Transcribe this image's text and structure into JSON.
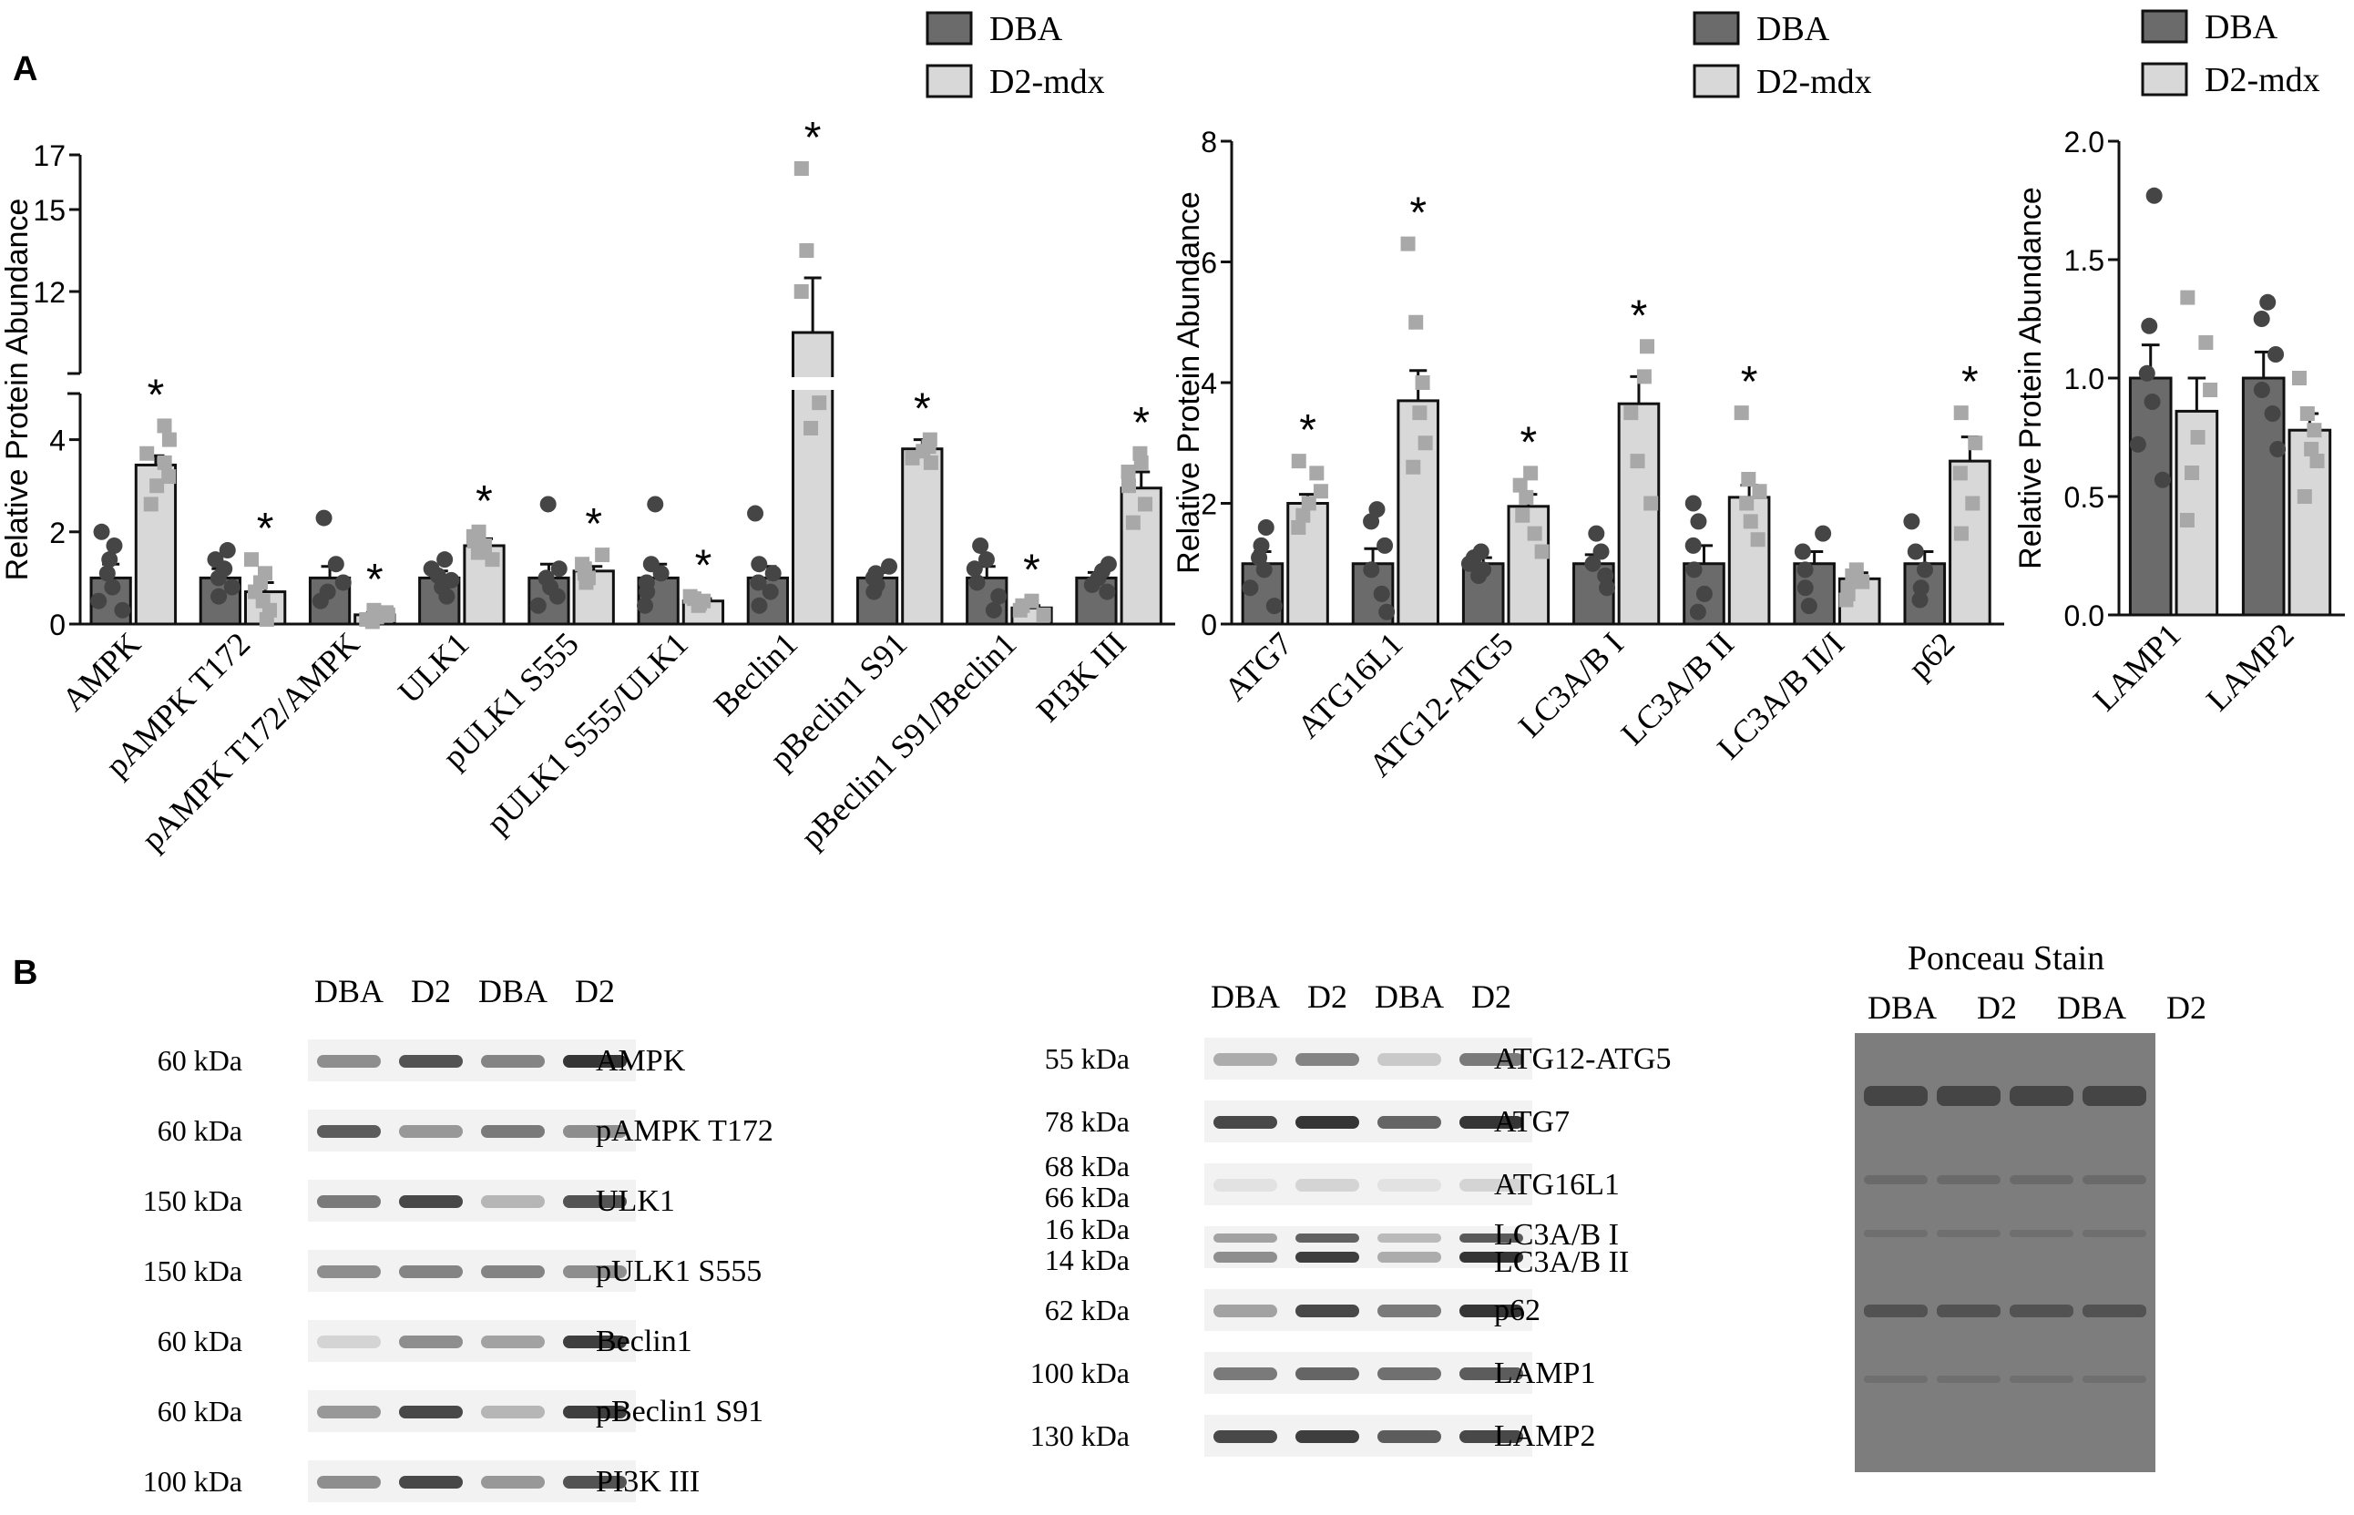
{
  "panel_labels": {
    "a": "A",
    "b": "B"
  },
  "colors": {
    "dba": "#6b6b6b",
    "d2mdx": "#d8d8d8",
    "dot_dba": "#454545",
    "dot_d2": "#a8a8a8",
    "axis": "#111111",
    "blot_band": "#2a2a2a",
    "ponceau_bg": "#7d7d7d"
  },
  "chart_data": [
    {
      "id": "chart1",
      "type": "bar",
      "ylabel": "Relative Protein Abundance",
      "axis_break": true,
      "ylim_lower": [
        0,
        5
      ],
      "ylim_upper": [
        9,
        17
      ],
      "yticks_lower": [
        0,
        2,
        4
      ],
      "yticks_upper": [
        12,
        15,
        17
      ],
      "legend": [
        "DBA",
        "D2-mdx"
      ],
      "categories": [
        "AMPK",
        "pAMPK T172",
        "pAMPK T172/AMPK",
        "ULK1",
        "pULK1 S555",
        "pULK1 S555/ULK1",
        "Beclin1",
        "pBeclin1 S91",
        "pBeclin1 S91/Beclin1",
        "PI3K III"
      ],
      "series": [
        {
          "name": "DBA",
          "values": [
            1.0,
            1.0,
            1.0,
            1.0,
            1.0,
            1.0,
            1.0,
            1.0,
            1.0,
            1.0
          ],
          "sem": [
            0.3,
            0.2,
            0.25,
            0.15,
            0.3,
            0.3,
            0.25,
            0.12,
            0.25,
            0.12
          ]
        },
        {
          "name": "D2-mdx",
          "values": [
            3.45,
            0.7,
            0.2,
            1.7,
            1.15,
            0.5,
            10.5,
            3.8,
            0.35,
            2.95
          ],
          "sem": [
            0.2,
            0.2,
            0.05,
            0.15,
            0.1,
            0.05,
            2.0,
            0.2,
            0.05,
            0.35
          ]
        }
      ],
      "points": [
        {
          "DBA": [
            0.3,
            0.5,
            0.8,
            1.1,
            1.4,
            1.7,
            2.0
          ],
          "D2-mdx": [
            2.6,
            3.0,
            3.2,
            3.5,
            3.7,
            4.0,
            4.3
          ]
        },
        {
          "DBA": [
            0.6,
            0.8,
            1.0,
            1.2,
            1.4,
            1.6
          ],
          "D2-mdx": [
            0.1,
            0.3,
            0.5,
            0.7,
            0.9,
            1.1,
            1.4
          ]
        },
        {
          "DBA": [
            0.5,
            0.7,
            0.9,
            1.3,
            2.3
          ],
          "D2-mdx": [
            0.05,
            0.1,
            0.15,
            0.2,
            0.25,
            0.3
          ]
        },
        {
          "DBA": [
            0.6,
            0.8,
            0.95,
            1.05,
            1.2,
            1.4
          ],
          "D2-mdx": [
            1.4,
            1.55,
            1.7,
            1.8,
            1.9,
            2.0
          ]
        },
        {
          "DBA": [
            0.4,
            0.6,
            0.8,
            1.0,
            1.2,
            2.6
          ],
          "D2-mdx": [
            0.9,
            1.0,
            1.1,
            1.2,
            1.3,
            1.5
          ]
        },
        {
          "DBA": [
            0.4,
            0.7,
            0.9,
            1.1,
            1.3,
            2.6
          ],
          "D2-mdx": [
            0.4,
            0.45,
            0.5,
            0.55,
            0.6
          ]
        },
        {
          "DBA": [
            0.4,
            0.7,
            0.9,
            1.1,
            1.3,
            2.4
          ],
          "D2-mdx": [
            4.8,
            7.0,
            12.0,
            13.5,
            16.5
          ]
        },
        {
          "DBA": [
            0.7,
            0.85,
            1.0,
            1.1,
            1.25
          ],
          "D2-mdx": [
            3.5,
            3.6,
            3.75,
            3.85,
            4.0
          ]
        },
        {
          "DBA": [
            0.3,
            0.6,
            0.9,
            1.2,
            1.4,
            1.7
          ],
          "D2-mdx": [
            0.2,
            0.3,
            0.4,
            0.5
          ]
        },
        {
          "DBA": [
            0.7,
            0.85,
            1.0,
            1.15,
            1.3
          ],
          "D2-mdx": [
            2.2,
            2.6,
            3.0,
            3.3,
            3.5,
            3.7
          ]
        }
      ],
      "significant": [
        false,
        true,
        false,
        true,
        false,
        true,
        false,
        true,
        false,
        true,
        false,
        true,
        false,
        true,
        false,
        true,
        false,
        true,
        false,
        true
      ],
      "annotation": "*"
    },
    {
      "id": "chart2",
      "type": "bar",
      "ylabel": "Relative Protein Abundance",
      "ylim": [
        0,
        8
      ],
      "yticks": [
        0,
        2,
        4,
        6,
        8
      ],
      "legend": [
        "DBA",
        "D2-mdx"
      ],
      "categories": [
        "ATG7",
        "ATG16L1",
        "ATG12-ATG5",
        "LC3A/B I",
        "LC3A/B II",
        "LC3A/B II/I",
        "p62"
      ],
      "series": [
        {
          "name": "DBA",
          "values": [
            1.0,
            1.0,
            1.0,
            1.0,
            1.0,
            1.0,
            1.0
          ],
          "sem": [
            0.2,
            0.25,
            0.1,
            0.15,
            0.3,
            0.2,
            0.2
          ]
        },
        {
          "name": "D2-mdx",
          "values": [
            2.0,
            3.7,
            1.95,
            3.65,
            2.1,
            0.75,
            2.7
          ],
          "sem": [
            0.15,
            0.5,
            0.2,
            0.45,
            0.2,
            0.1,
            0.4
          ]
        }
      ],
      "points": [
        {
          "DBA": [
            0.3,
            0.6,
            0.9,
            1.1,
            1.3,
            1.6
          ],
          "D2-mdx": [
            1.6,
            1.8,
            2.0,
            2.2,
            2.5,
            2.7
          ]
        },
        {
          "DBA": [
            0.2,
            0.5,
            0.9,
            1.3,
            1.7,
            1.9
          ],
          "D2-mdx": [
            2.6,
            3.0,
            3.5,
            4.0,
            5.0,
            6.3
          ]
        },
        {
          "DBA": [
            0.8,
            0.9,
            1.0,
            1.1,
            1.2
          ],
          "D2-mdx": [
            1.2,
            1.5,
            1.8,
            2.1,
            2.3,
            2.5
          ]
        },
        {
          "DBA": [
            0.6,
            0.8,
            1.0,
            1.2,
            1.5
          ],
          "D2-mdx": [
            2.0,
            2.7,
            3.5,
            4.1,
            4.6
          ]
        },
        {
          "DBA": [
            0.2,
            0.5,
            0.9,
            1.3,
            1.7,
            2.0
          ],
          "D2-mdx": [
            1.4,
            1.7,
            2.0,
            2.2,
            2.4,
            3.5
          ]
        },
        {
          "DBA": [
            0.3,
            0.6,
            0.9,
            1.2,
            1.5
          ],
          "D2-mdx": [
            0.4,
            0.5,
            0.6,
            0.7,
            0.8,
            0.9
          ]
        },
        {
          "DBA": [
            0.4,
            0.6,
            0.9,
            1.2,
            1.7
          ],
          "D2-mdx": [
            1.5,
            2.0,
            2.5,
            3.0,
            3.5
          ]
        }
      ],
      "significant": [
        false,
        true,
        false,
        true,
        false,
        true,
        false,
        true,
        false,
        true,
        false,
        false,
        false,
        true
      ],
      "annotation": "*"
    },
    {
      "id": "chart3",
      "type": "bar",
      "ylabel": "Relative Protein Abundance",
      "ylim": [
        0,
        2
      ],
      "yticks": [
        "0.0",
        "0.5",
        "1.0",
        "1.5",
        "2.0"
      ],
      "legend": [
        "DBA",
        "D2-mdx"
      ],
      "categories": [
        "LAMP1",
        "LAMP2"
      ],
      "series": [
        {
          "name": "DBA",
          "values": [
            1.0,
            1.0
          ],
          "sem": [
            0.14,
            0.11
          ]
        },
        {
          "name": "D2-mdx",
          "values": [
            0.86,
            0.78
          ],
          "sem": [
            0.14,
            0.07
          ]
        }
      ],
      "points": [
        {
          "DBA": [
            0.57,
            0.72,
            0.9,
            1.02,
            1.22,
            1.77
          ],
          "D2-mdx": [
            0.4,
            0.6,
            0.75,
            0.95,
            1.15,
            1.34
          ]
        },
        {
          "DBA": [
            0.7,
            0.85,
            0.95,
            1.1,
            1.25,
            1.32
          ],
          "D2-mdx": [
            0.5,
            0.65,
            0.7,
            0.78,
            0.85,
            1.0
          ]
        }
      ],
      "significant": [
        false,
        false,
        false,
        false
      ],
      "annotation": "*"
    }
  ],
  "blots": {
    "left": {
      "lanes": [
        "DBA",
        "D2",
        "DBA",
        "D2"
      ],
      "rows": [
        {
          "kda": "60 kDa",
          "name": "AMPK",
          "intensity": [
            0.5,
            0.8,
            0.55,
            0.95
          ]
        },
        {
          "kda": "60 kDa",
          "name": "pAMPK T172",
          "intensity": [
            0.75,
            0.45,
            0.6,
            0.5
          ]
        },
        {
          "kda": "150 kDa",
          "name": "ULK1",
          "intensity": [
            0.6,
            0.85,
            0.3,
            0.8
          ]
        },
        {
          "kda": "150 kDa",
          "name": "pULK1 S555",
          "intensity": [
            0.5,
            0.55,
            0.55,
            0.5
          ]
        },
        {
          "kda": "60 kDa",
          "name": "Beclin1",
          "intensity": [
            0.15,
            0.5,
            0.4,
            0.9
          ]
        },
        {
          "kda": "60 kDa",
          "name": "pBeclin1 S91",
          "intensity": [
            0.45,
            0.85,
            0.3,
            0.9
          ]
        },
        {
          "kda": "100 kDa",
          "name": "PI3K III",
          "intensity": [
            0.5,
            0.85,
            0.45,
            0.8
          ]
        }
      ]
    },
    "middle": {
      "lanes": [
        "DBA",
        "D2",
        "DBA",
        "D2"
      ],
      "rows": [
        {
          "kda": "55 kDa",
          "name": "ATG12-ATG5",
          "intensity": [
            0.35,
            0.55,
            0.2,
            0.6
          ]
        },
        {
          "kda": "78 kDa",
          "name": "ATG7",
          "intensity": [
            0.85,
            0.95,
            0.7,
            0.95
          ]
        },
        {
          "kda": "68 kDa",
          "kda2": "66 kDa",
          "name": "ATG16L1",
          "intensity": [
            0.08,
            0.15,
            0.08,
            0.15
          ]
        },
        {
          "kda": "16 kDa",
          "kda2": "14 kDa",
          "name": "LC3A/B I",
          "name2": "LC3A/B II",
          "intensity": [
            0.5,
            0.9,
            0.35,
            0.95
          ]
        },
        {
          "kda": "62 kDa",
          "name": "p62",
          "intensity": [
            0.4,
            0.85,
            0.6,
            0.95
          ]
        },
        {
          "kda": "100 kDa",
          "name": "LAMP1",
          "intensity": [
            0.6,
            0.7,
            0.65,
            0.75
          ]
        },
        {
          "kda": "130 kDa",
          "name": "LAMP2",
          "intensity": [
            0.85,
            0.9,
            0.75,
            0.85
          ]
        }
      ]
    },
    "ponceau": {
      "title": "Ponceau Stain",
      "lanes": [
        "DBA",
        "D2",
        "DBA",
        "D2"
      ]
    }
  }
}
